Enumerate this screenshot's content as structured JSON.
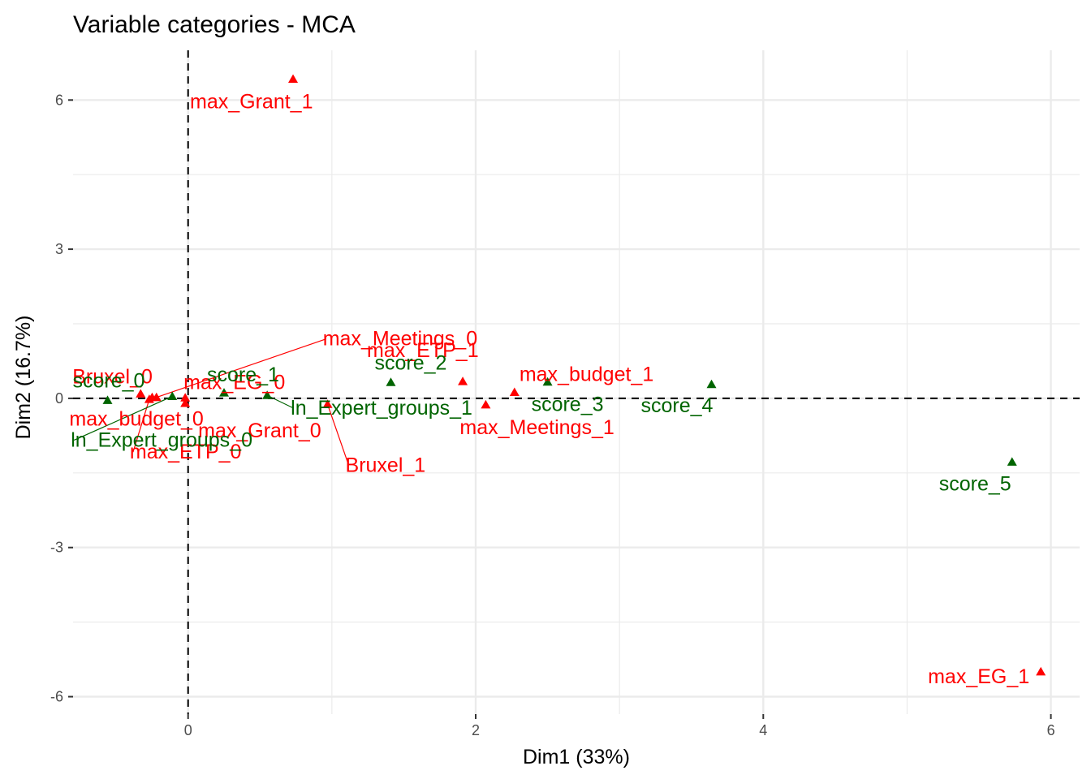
{
  "chart_data": {
    "type": "scatter",
    "title": "Variable categories - MCA",
    "xlabel": "Dim1 (33%)",
    "ylabel": "Dim2 (16.7%)",
    "xlim": [
      -0.8,
      6.2
    ],
    "ylim": [
      -6.35,
      7.0
    ],
    "x_ticks": [
      0,
      2,
      4,
      6
    ],
    "y_ticks": [
      -6,
      -3,
      0,
      3,
      6
    ],
    "x_tick_labels": [
      "0",
      "2",
      "4",
      "6"
    ],
    "y_tick_labels": [
      "-6",
      "-3",
      "0",
      "3",
      "6"
    ],
    "grid": true,
    "reference_lines": {
      "x": 0,
      "y": 0
    },
    "colors": {
      "active": "#ff0000",
      "supplementary": "#006400"
    },
    "groups": [
      "active",
      "supplementary"
    ],
    "points": [
      {
        "label": "max_Grant_1",
        "x": 0.73,
        "y": 6.42,
        "group": "active"
      },
      {
        "label": "max_Meetings_0",
        "x": -0.22,
        "y": 0.02,
        "group": "active"
      },
      {
        "label": "Bruxel_0",
        "x": -0.33,
        "y": 0.09,
        "group": "active"
      },
      {
        "label": "max_EG_0",
        "x": -0.02,
        "y": 0.01,
        "group": "active"
      },
      {
        "label": "max_budget_0",
        "x": -0.25,
        "y": 0.02,
        "group": "active"
      },
      {
        "label": "max_Grant_0",
        "x": -0.02,
        "y": -0.1,
        "group": "active"
      },
      {
        "label": "max_ETP_0",
        "x": -0.27,
        "y": -0.02,
        "group": "active"
      },
      {
        "label": "Bruxel_1",
        "x": 0.97,
        "y": -0.12,
        "group": "active"
      },
      {
        "label": "max_ETP_1",
        "x": 1.91,
        "y": 0.34,
        "group": "active"
      },
      {
        "label": "max_Meetings_1",
        "x": 2.07,
        "y": -0.13,
        "group": "active"
      },
      {
        "label": "max_budget_1",
        "x": 2.27,
        "y": 0.12,
        "group": "active"
      },
      {
        "label": "max_EG_1",
        "x": 5.93,
        "y": -5.5,
        "group": "active"
      },
      {
        "label": "score_0",
        "x": -0.56,
        "y": -0.04,
        "group": "supplementary"
      },
      {
        "label": "score_1",
        "x": 0.25,
        "y": 0.11,
        "group": "supplementary"
      },
      {
        "label": "ln_Expert_groups_0",
        "x": -0.11,
        "y": 0.04,
        "group": "supplementary"
      },
      {
        "label": "ln_Expert_groups_1",
        "x": 0.55,
        "y": 0.06,
        "group": "supplementary"
      },
      {
        "label": "score_2",
        "x": 1.41,
        "y": 0.32,
        "group": "supplementary"
      },
      {
        "label": "score_3",
        "x": 2.5,
        "y": 0.33,
        "group": "supplementary"
      },
      {
        "label": "score_4",
        "x": 3.64,
        "y": 0.28,
        "group": "supplementary"
      },
      {
        "label": "score_5",
        "x": 5.73,
        "y": -1.28,
        "group": "supplementary"
      }
    ]
  }
}
